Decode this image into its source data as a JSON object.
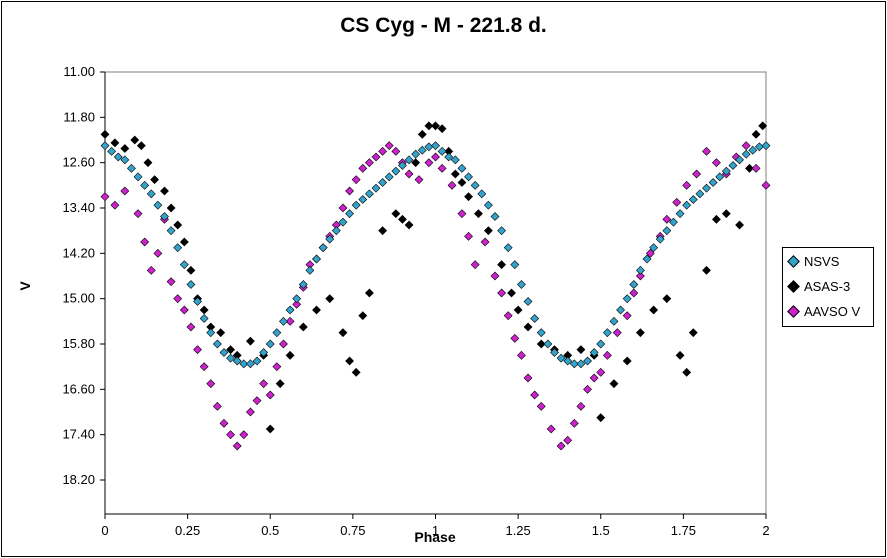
{
  "chart_data": {
    "type": "scatter",
    "title": "CS Cyg - M - 221.8 d.",
    "xlabel": "Phase",
    "ylabel": "V",
    "xlim": [
      0,
      2
    ],
    "ylim": [
      11.0,
      18.8
    ],
    "y_inverted": true,
    "xticks": [
      "0",
      "0.25",
      "0.5",
      "0.75",
      "1",
      "1.25",
      "1.5",
      "1.75",
      "2"
    ],
    "yticks": [
      "11.00",
      "11.80",
      "12.60",
      "13.40",
      "14.20",
      "15.00",
      "15.80",
      "16.60",
      "17.40",
      "18.20"
    ],
    "grid": false,
    "legend_position": "right",
    "colors": {
      "NSVS": "#33a3cc",
      "ASAS-3": "#000000",
      "AAVSO V": "#cc22cc"
    },
    "series": [
      {
        "name": "NSVS",
        "marker": "diamond",
        "points": [
          [
            0.0,
            12.3
          ],
          [
            0.02,
            12.4
          ],
          [
            0.04,
            12.5
          ],
          [
            0.06,
            12.55
          ],
          [
            0.08,
            12.7
          ],
          [
            0.1,
            12.85
          ],
          [
            0.12,
            13.0
          ],
          [
            0.14,
            13.15
          ],
          [
            0.16,
            13.35
          ],
          [
            0.18,
            13.55
          ],
          [
            0.2,
            13.8
          ],
          [
            0.22,
            14.1
          ],
          [
            0.24,
            14.4
          ],
          [
            0.26,
            14.75
          ],
          [
            0.28,
            15.05
          ],
          [
            0.3,
            15.35
          ],
          [
            0.32,
            15.6
          ],
          [
            0.34,
            15.8
          ],
          [
            0.36,
            15.95
          ],
          [
            0.38,
            16.05
          ],
          [
            0.4,
            16.1
          ],
          [
            0.42,
            16.15
          ],
          [
            0.44,
            16.15
          ],
          [
            0.46,
            16.1
          ],
          [
            0.48,
            15.95
          ],
          [
            0.5,
            15.8
          ],
          [
            0.52,
            15.6
          ],
          [
            0.54,
            15.4
          ],
          [
            0.56,
            15.2
          ],
          [
            0.58,
            15.0
          ],
          [
            0.6,
            14.75
          ],
          [
            0.62,
            14.5
          ],
          [
            0.64,
            14.3
          ],
          [
            0.66,
            14.1
          ],
          [
            0.68,
            13.95
          ],
          [
            0.7,
            13.8
          ],
          [
            0.72,
            13.65
          ],
          [
            0.74,
            13.5
          ],
          [
            0.76,
            13.35
          ],
          [
            0.78,
            13.25
          ],
          [
            0.8,
            13.15
          ],
          [
            0.82,
            13.05
          ],
          [
            0.84,
            12.95
          ],
          [
            0.86,
            12.85
          ],
          [
            0.88,
            12.75
          ],
          [
            0.9,
            12.65
          ],
          [
            0.92,
            12.55
          ],
          [
            0.94,
            12.45
          ],
          [
            0.96,
            12.38
          ],
          [
            0.98,
            12.32
          ],
          [
            1.0,
            12.3
          ],
          [
            1.02,
            12.4
          ],
          [
            1.04,
            12.5
          ],
          [
            1.06,
            12.55
          ],
          [
            1.08,
            12.7
          ],
          [
            1.1,
            12.85
          ],
          [
            1.12,
            13.0
          ],
          [
            1.14,
            13.15
          ],
          [
            1.16,
            13.35
          ],
          [
            1.18,
            13.55
          ],
          [
            1.2,
            13.8
          ],
          [
            1.22,
            14.1
          ],
          [
            1.24,
            14.4
          ],
          [
            1.26,
            14.75
          ],
          [
            1.28,
            15.05
          ],
          [
            1.3,
            15.35
          ],
          [
            1.32,
            15.6
          ],
          [
            1.34,
            15.8
          ],
          [
            1.36,
            15.95
          ],
          [
            1.38,
            16.05
          ],
          [
            1.4,
            16.1
          ],
          [
            1.42,
            16.15
          ],
          [
            1.44,
            16.15
          ],
          [
            1.46,
            16.1
          ],
          [
            1.48,
            15.95
          ],
          [
            1.5,
            15.8
          ],
          [
            1.52,
            15.6
          ],
          [
            1.54,
            15.4
          ],
          [
            1.56,
            15.2
          ],
          [
            1.58,
            15.0
          ],
          [
            1.6,
            14.75
          ],
          [
            1.62,
            14.5
          ],
          [
            1.64,
            14.3
          ],
          [
            1.66,
            14.1
          ],
          [
            1.68,
            13.95
          ],
          [
            1.7,
            13.8
          ],
          [
            1.72,
            13.65
          ],
          [
            1.74,
            13.5
          ],
          [
            1.76,
            13.35
          ],
          [
            1.78,
            13.25
          ],
          [
            1.8,
            13.15
          ],
          [
            1.82,
            13.05
          ],
          [
            1.84,
            12.95
          ],
          [
            1.86,
            12.85
          ],
          [
            1.88,
            12.75
          ],
          [
            1.9,
            12.65
          ],
          [
            1.92,
            12.55
          ],
          [
            1.94,
            12.45
          ],
          [
            1.96,
            12.38
          ],
          [
            1.98,
            12.32
          ],
          [
            2.0,
            12.3
          ]
        ]
      },
      {
        "name": "ASAS-3",
        "marker": "diamond",
        "points": [
          [
            0.0,
            12.1
          ],
          [
            0.03,
            12.25
          ],
          [
            0.06,
            12.35
          ],
          [
            0.09,
            12.2
          ],
          [
            0.11,
            12.3
          ],
          [
            0.13,
            12.6
          ],
          [
            0.15,
            12.9
          ],
          [
            0.18,
            13.1
          ],
          [
            0.2,
            13.4
          ],
          [
            0.22,
            13.7
          ],
          [
            0.24,
            14.0
          ],
          [
            0.26,
            14.5
          ],
          [
            0.28,
            15.0
          ],
          [
            0.3,
            15.2
          ],
          [
            0.32,
            15.5
          ],
          [
            0.35,
            15.6
          ],
          [
            0.38,
            15.9
          ],
          [
            0.4,
            16.0
          ],
          [
            0.44,
            15.75
          ],
          [
            0.48,
            16.0
          ],
          [
            0.5,
            17.3
          ],
          [
            0.53,
            16.5
          ],
          [
            0.56,
            16.0
          ],
          [
            0.6,
            15.5
          ],
          [
            0.64,
            15.2
          ],
          [
            0.68,
            15.0
          ],
          [
            0.72,
            15.6
          ],
          [
            0.74,
            16.1
          ],
          [
            0.76,
            16.3
          ],
          [
            0.78,
            15.3
          ],
          [
            0.8,
            14.9
          ],
          [
            0.84,
            13.8
          ],
          [
            0.88,
            13.5
          ],
          [
            0.9,
            13.6
          ],
          [
            0.92,
            13.7
          ],
          [
            0.94,
            12.6
          ],
          [
            0.96,
            12.1
          ],
          [
            0.98,
            11.95
          ],
          [
            1.0,
            11.95
          ],
          [
            1.02,
            12.0
          ],
          [
            1.04,
            12.4
          ],
          [
            1.06,
            12.8
          ],
          [
            1.08,
            12.95
          ],
          [
            1.1,
            13.2
          ],
          [
            1.13,
            13.5
          ],
          [
            1.16,
            13.8
          ],
          [
            1.2,
            14.4
          ],
          [
            1.23,
            14.9
          ],
          [
            1.25,
            15.2
          ],
          [
            1.28,
            15.5
          ],
          [
            1.32,
            15.8
          ],
          [
            1.36,
            15.9
          ],
          [
            1.4,
            16.0
          ],
          [
            1.44,
            15.9
          ],
          [
            1.48,
            16.0
          ],
          [
            1.5,
            17.1
          ],
          [
            1.54,
            16.5
          ],
          [
            1.58,
            16.1
          ],
          [
            1.62,
            15.6
          ],
          [
            1.66,
            15.2
          ],
          [
            1.7,
            15.0
          ],
          [
            1.74,
            16.0
          ],
          [
            1.76,
            16.3
          ],
          [
            1.78,
            15.6
          ],
          [
            1.82,
            14.5
          ],
          [
            1.85,
            13.6
          ],
          [
            1.88,
            13.5
          ],
          [
            1.92,
            13.7
          ],
          [
            1.95,
            12.7
          ],
          [
            1.97,
            12.1
          ],
          [
            1.99,
            11.95
          ]
        ]
      },
      {
        "name": "AAVSO V",
        "marker": "diamond",
        "points": [
          [
            0.0,
            13.2
          ],
          [
            0.03,
            13.35
          ],
          [
            0.06,
            13.1
          ],
          [
            0.1,
            13.5
          ],
          [
            0.12,
            14.0
          ],
          [
            0.14,
            14.5
          ],
          [
            0.16,
            14.2
          ],
          [
            0.18,
            13.6
          ],
          [
            0.2,
            14.7
          ],
          [
            0.22,
            15.0
          ],
          [
            0.24,
            15.2
          ],
          [
            0.26,
            15.5
          ],
          [
            0.28,
            15.9
          ],
          [
            0.3,
            16.2
          ],
          [
            0.32,
            16.5
          ],
          [
            0.34,
            16.9
          ],
          [
            0.36,
            17.2
          ],
          [
            0.38,
            17.4
          ],
          [
            0.4,
            17.6
          ],
          [
            0.42,
            17.4
          ],
          [
            0.44,
            17.0
          ],
          [
            0.46,
            16.8
          ],
          [
            0.48,
            16.5
          ],
          [
            0.5,
            16.7
          ],
          [
            0.52,
            16.2
          ],
          [
            0.54,
            15.8
          ],
          [
            0.56,
            15.4
          ],
          [
            0.58,
            15.1
          ],
          [
            0.6,
            14.8
          ],
          [
            0.62,
            14.4
          ],
          [
            0.64,
            14.3
          ],
          [
            0.66,
            14.1
          ],
          [
            0.68,
            13.9
          ],
          [
            0.7,
            13.7
          ],
          [
            0.72,
            13.4
          ],
          [
            0.74,
            13.1
          ],
          [
            0.76,
            12.9
          ],
          [
            0.78,
            12.7
          ],
          [
            0.8,
            12.6
          ],
          [
            0.82,
            12.5
          ],
          [
            0.84,
            12.4
          ],
          [
            0.86,
            12.3
          ],
          [
            0.88,
            12.4
          ],
          [
            0.9,
            12.6
          ],
          [
            0.92,
            12.8
          ],
          [
            0.95,
            12.9
          ],
          [
            0.98,
            12.6
          ],
          [
            1.0,
            12.5
          ],
          [
            1.02,
            12.7
          ],
          [
            1.05,
            13.0
          ],
          [
            1.08,
            13.5
          ],
          [
            1.1,
            13.9
          ],
          [
            1.12,
            14.4
          ],
          [
            1.15,
            14.0
          ],
          [
            1.18,
            14.6
          ],
          [
            1.2,
            14.9
          ],
          [
            1.22,
            15.3
          ],
          [
            1.24,
            15.7
          ],
          [
            1.26,
            16.0
          ],
          [
            1.28,
            16.4
          ],
          [
            1.3,
            16.7
          ],
          [
            1.32,
            16.9
          ],
          [
            1.35,
            17.3
          ],
          [
            1.38,
            17.6
          ],
          [
            1.4,
            17.5
          ],
          [
            1.42,
            17.2
          ],
          [
            1.44,
            16.9
          ],
          [
            1.46,
            16.6
          ],
          [
            1.48,
            16.4
          ],
          [
            1.5,
            16.3
          ],
          [
            1.52,
            16.0
          ],
          [
            1.55,
            15.6
          ],
          [
            1.58,
            15.3
          ],
          [
            1.6,
            14.9
          ],
          [
            1.62,
            14.6
          ],
          [
            1.65,
            14.2
          ],
          [
            1.68,
            13.9
          ],
          [
            1.7,
            13.6
          ],
          [
            1.73,
            13.3
          ],
          [
            1.76,
            13.0
          ],
          [
            1.79,
            12.8
          ],
          [
            1.82,
            12.4
          ],
          [
            1.85,
            12.6
          ],
          [
            1.88,
            12.8
          ],
          [
            1.91,
            12.5
          ],
          [
            1.94,
            12.3
          ],
          [
            1.97,
            12.7
          ],
          [
            2.0,
            13.0
          ]
        ]
      }
    ]
  }
}
